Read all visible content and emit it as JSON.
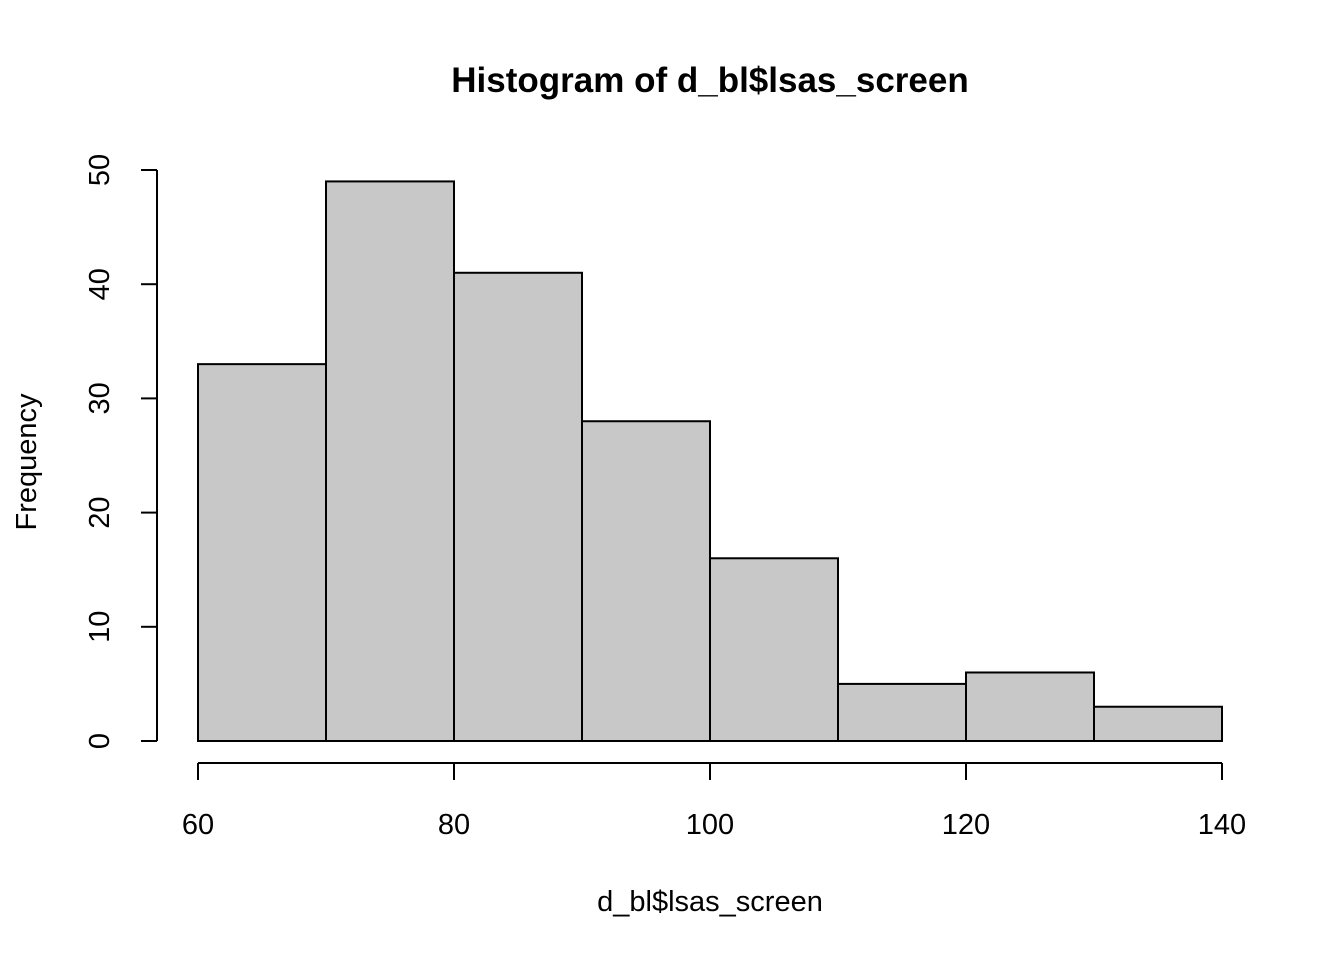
{
  "chart_data": {
    "type": "bar",
    "title": "Histogram of d_bl$lsas_screen",
    "xlabel": "d_bl$lsas_screen",
    "ylabel": "Frequency",
    "bins": [
      {
        "x0": 60,
        "x1": 70,
        "count": 33
      },
      {
        "x0": 70,
        "x1": 80,
        "count": 49
      },
      {
        "x0": 80,
        "x1": 90,
        "count": 41
      },
      {
        "x0": 90,
        "x1": 100,
        "count": 28
      },
      {
        "x0": 100,
        "x1": 110,
        "count": 16
      },
      {
        "x0": 110,
        "x1": 120,
        "count": 5
      },
      {
        "x0": 120,
        "x1": 130,
        "count": 6
      },
      {
        "x0": 130,
        "x1": 140,
        "count": 3
      }
    ],
    "xlim": [
      60,
      140
    ],
    "ylim": [
      0,
      50
    ],
    "xticks": [
      "60",
      "80",
      "100",
      "120",
      "140"
    ],
    "yticks": [
      "0",
      "10",
      "20",
      "30",
      "40",
      "50"
    ],
    "bar_color": "#c8c8c8",
    "grid": false
  }
}
